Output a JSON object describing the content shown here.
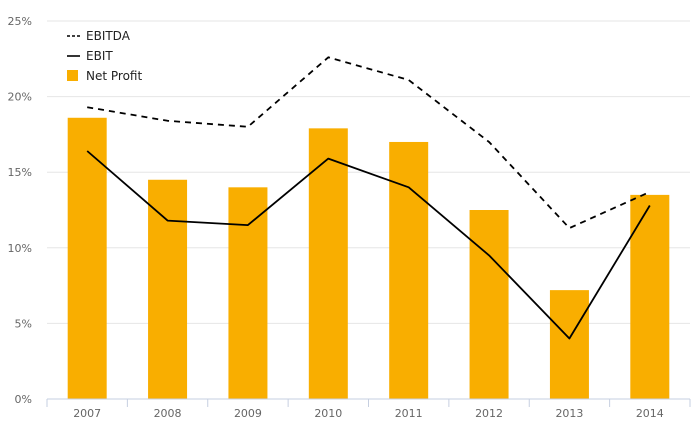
{
  "chart_data": {
    "type": "bar",
    "categories": [
      "2007",
      "2008",
      "2009",
      "2010",
      "2011",
      "2012",
      "2013",
      "2014"
    ],
    "series": [
      {
        "name": "Net Profit",
        "kind": "bar",
        "values": [
          18.6,
          14.5,
          14.0,
          17.9,
          17.0,
          12.5,
          7.2,
          13.5
        ]
      },
      {
        "name": "EBITDA",
        "kind": "line-dashed",
        "values": [
          19.3,
          18.4,
          18.0,
          22.6,
          21.1,
          17.0,
          11.3,
          13.7
        ]
      },
      {
        "name": "EBIT",
        "kind": "line",
        "values": [
          16.4,
          11.8,
          11.5,
          15.9,
          14.0,
          9.5,
          4.0,
          12.8
        ]
      }
    ],
    "yticks": [
      "0%",
      "5%",
      "10%",
      "15%",
      "20%",
      "25%"
    ],
    "ylim": [
      0,
      25
    ],
    "grid": true,
    "legend": "top-left",
    "colors": {
      "bar": "#f9ae00",
      "lines": "#000000",
      "grid": "#e6e6e6",
      "axis": "#c6cfe0"
    }
  }
}
